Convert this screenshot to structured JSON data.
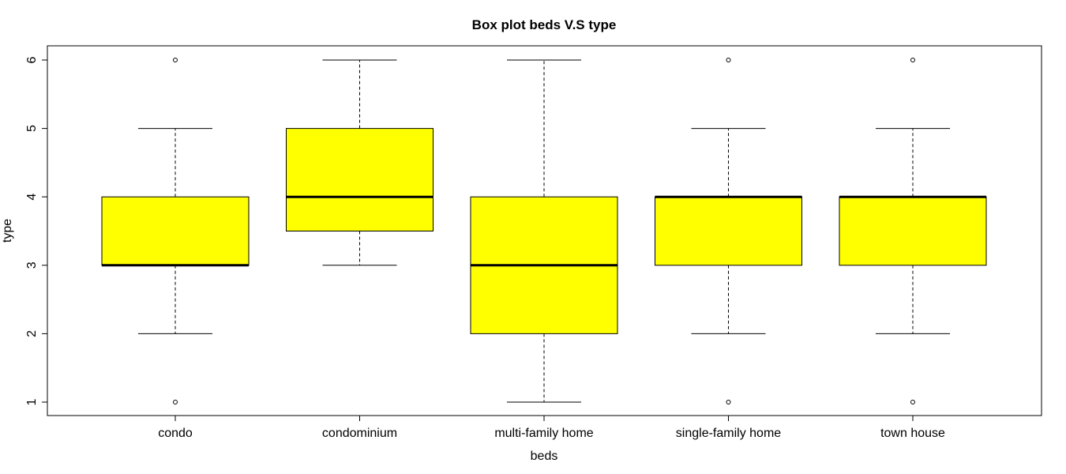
{
  "chart_data": {
    "type": "box",
    "title": "Box plot beds V.S type",
    "xlabel": "beds",
    "ylabel": "type",
    "ylim": [
      1,
      6
    ],
    "yticks": [
      1,
      2,
      3,
      4,
      5,
      6
    ],
    "box_fill": "#ffff00",
    "grid": false,
    "categories": [
      "condo",
      "condominium",
      "multi-family home",
      "single-family home",
      "town house"
    ],
    "boxes": [
      {
        "category": "condo",
        "whisker_low": 2,
        "q1": 3,
        "median": 3,
        "q3": 4,
        "whisker_high": 5,
        "outliers": [
          1,
          6
        ]
      },
      {
        "category": "condominium",
        "whisker_low": 3,
        "q1": 3.5,
        "median": 4,
        "q3": 5,
        "whisker_high": 6,
        "outliers": []
      },
      {
        "category": "multi-family home",
        "whisker_low": 1,
        "q1": 2,
        "median": 3,
        "q3": 4,
        "whisker_high": 6,
        "outliers": []
      },
      {
        "category": "single-family home",
        "whisker_low": 2,
        "q1": 3,
        "median": 4,
        "q3": 4,
        "whisker_high": 5,
        "outliers": [
          1,
          6
        ]
      },
      {
        "category": "town house",
        "whisker_low": 2,
        "q1": 3,
        "median": 4,
        "q3": 4,
        "whisker_high": 5,
        "outliers": [
          1,
          6
        ]
      }
    ]
  }
}
